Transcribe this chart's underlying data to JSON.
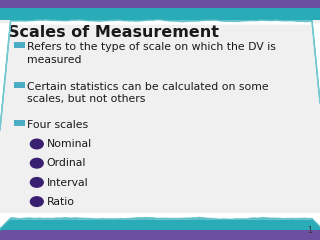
{
  "title": "Scales of Measurement",
  "title_color": "#1a1a1a",
  "title_fontsize": 11.5,
  "background_color": "#f0f0f0",
  "bullet_color": "#4bacc6",
  "sub_bullet_color": "#3a2070",
  "bullet_items": [
    "Refers to the type of scale on which the DV is\nmeasured",
    "Certain statistics can be calculated on some\nscales, but not others",
    "Four scales"
  ],
  "sub_items": [
    "Nominal",
    "Ordinal",
    "Interval",
    "Ratio"
  ],
  "text_color": "#1a1a1a",
  "text_fontsize": 7.8,
  "page_number": "1",
  "top_purple": "#6b4fa0",
  "top_teal": "#2aacb8",
  "bot_purple": "#6b4fa0",
  "bot_teal": "#2aacb8"
}
